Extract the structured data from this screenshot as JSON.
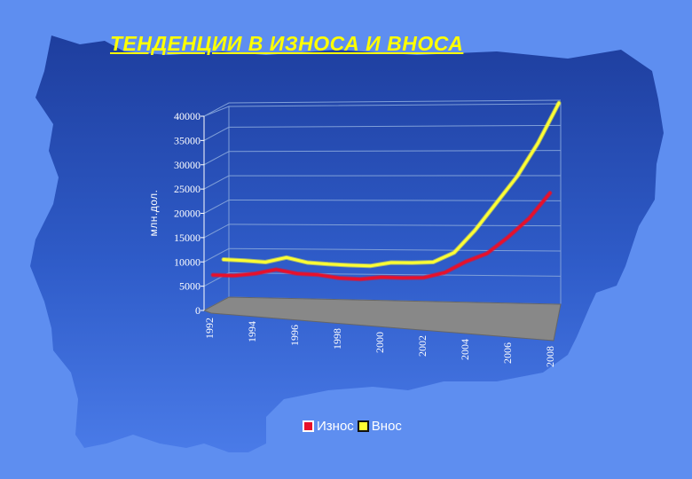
{
  "slide": {
    "title": "ТЕНДЕНЦИИ В ИЗНОСА И ВНОСА",
    "background_color": "#5e8ef0",
    "map_color": "#1d3d9c"
  },
  "chart_data": {
    "type": "line",
    "ylabel": "млн.дол.",
    "xlabel": "",
    "ylim": [
      0,
      40000
    ],
    "y_ticks": [
      "0",
      "5000",
      "10000",
      "15000",
      "20000",
      "25000",
      "30000",
      "35000",
      "40000"
    ],
    "x": [
      1992,
      1993,
      1994,
      1995,
      1996,
      1997,
      1998,
      1999,
      2000,
      2001,
      2002,
      2003,
      2004,
      2005,
      2006,
      2007,
      2008
    ],
    "x_tick_labels": [
      "1992",
      "1994",
      "1996",
      "1998",
      "2000",
      "2002",
      "2004",
      "2006",
      "2008"
    ],
    "series": [
      {
        "name": "Износ",
        "color": "#e8102a",
        "values": [
          4000,
          3600,
          3800,
          4500,
          3300,
          2800,
          1800,
          1300,
          1500,
          1100,
          900,
          1800,
          4000,
          5600,
          9000,
          13000,
          18500
        ]
      },
      {
        "name": "Внос",
        "color": "#ffff33",
        "values": [
          5500,
          5200,
          4800,
          5800,
          4600,
          4200,
          3900,
          3700,
          4400,
          4300,
          4400,
          6500,
          11500,
          17500,
          23500,
          31000,
          40000
        ]
      }
    ],
    "grid": true,
    "three_d": true,
    "legend_position": "bottom"
  }
}
